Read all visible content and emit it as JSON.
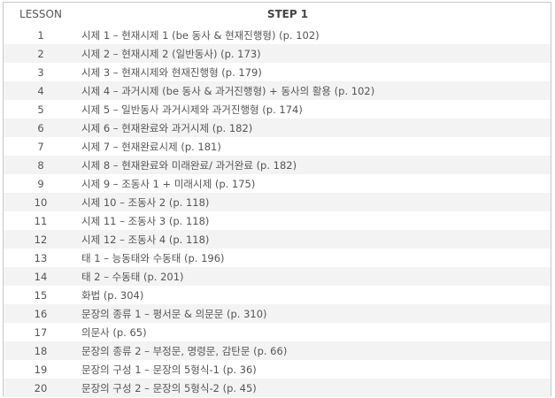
{
  "header": {
    "lesson": "LESSON",
    "step": "STEP 1"
  },
  "rows": [
    {
      "lesson": "1",
      "title": "시제 1 – 현재시제 1 (be 동사 & 현재진행형) (p. 102)"
    },
    {
      "lesson": "2",
      "title": "시제 2 – 현재시제 2 (일반동사) (p. 173)"
    },
    {
      "lesson": "3",
      "title": "시제 3 – 현재시제와 현재진행형 (p. 179)"
    },
    {
      "lesson": "4",
      "title": "시제 4 – 과거시제 (be 동사 & 과거진행형) + 동사의 활용 (p. 102)"
    },
    {
      "lesson": "5",
      "title": "시제 5 – 일반동사 과거시제와 과거진행형 (p. 174)"
    },
    {
      "lesson": "6",
      "title": "시제 6 – 현재완료와 과거시제 (p. 182)"
    },
    {
      "lesson": "7",
      "title": "시제 7 – 현재완료시제 (p. 181)"
    },
    {
      "lesson": "8",
      "title": "시제 8 – 현재완료와 미래완료/ 과거완료 (p. 182)"
    },
    {
      "lesson": "9",
      "title": "시제 9 – 조동사 1 + 미래시제 (p. 175)"
    },
    {
      "lesson": "10",
      "title": "시제 10 – 조동사 2 (p. 118)"
    },
    {
      "lesson": "11",
      "title": "시제 11 – 조동사 3 (p. 118)"
    },
    {
      "lesson": "12",
      "title": "시제 12 – 조동사 4 (p. 118)"
    },
    {
      "lesson": "13",
      "title": "태 1 – 능동태와 수동태 (p. 196)"
    },
    {
      "lesson": "14",
      "title": "태 2 – 수동태 (p. 201)"
    },
    {
      "lesson": "15",
      "title": "화법 (p. 304)"
    },
    {
      "lesson": "16",
      "title": "문장의 종류 1 – 평서문 & 의문문 (p. 310)"
    },
    {
      "lesson": "17",
      "title": "의문사 (p. 65)"
    },
    {
      "lesson": "18",
      "title": "문장의 종류 2 – 부정문, 명령문, 감탄문 (p. 66)"
    },
    {
      "lesson": "19",
      "title": "문장의 구성 1 – 문장의 5형식-1 (p. 36)"
    },
    {
      "lesson": "20",
      "title": "문장의 구성 2 – 문장의 5형식-2 (p. 45)"
    }
  ]
}
